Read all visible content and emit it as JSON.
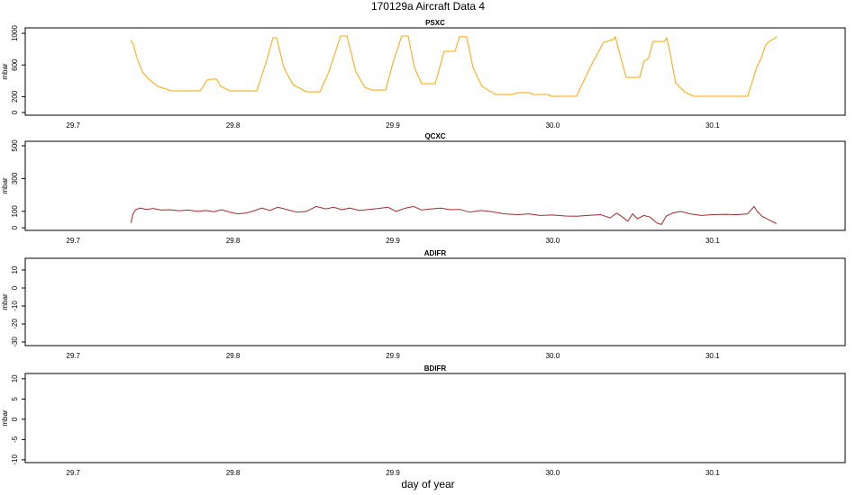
{
  "title": "170129a   Aircraft Data 4",
  "xlabel": "day of year",
  "chart_data": [
    {
      "type": "line",
      "title": "PSXC",
      "ylabel": "mbar",
      "color": "#ffa500",
      "xlim": [
        29.67,
        30.183
      ],
      "xticks": [
        29.7,
        29.8,
        29.9,
        {
          "value": 30,
          "label": "30.0"
        },
        30.1
      ],
      "ylim": [
        -34,
        1068
      ],
      "yticks": [
        0,
        200,
        600,
        1000
      ],
      "x": [
        29.7361,
        29.7377,
        29.74,
        29.7434,
        29.7473,
        29.753,
        29.7614,
        29.7794,
        29.7839,
        29.7856,
        29.7896,
        29.7924,
        29.798,
        29.8149,
        29.8206,
        29.8251,
        29.8273,
        29.8318,
        29.8375,
        29.8459,
        29.8544,
        29.86,
        29.8673,
        29.8713,
        29.8769,
        29.8825,
        29.8865,
        29.8955,
        29.9,
        29.9056,
        29.9096,
        29.9135,
        29.918,
        29.9265,
        29.9321,
        29.9389,
        29.9417,
        29.9462,
        29.9501,
        29.9558,
        29.9642,
        29.9744,
        29.9783,
        29.9856,
        29.9879,
        29.9969,
        29.9992,
        30.0149,
        30.0234,
        30.0318,
        30.0375,
        30.0392,
        30.042,
        30.0459,
        30.0544,
        30.0572,
        30.06,
        30.0628,
        30.0701,
        30.0713,
        30.073,
        30.0769,
        30.0825,
        30.0882,
        30.122,
        30.1276,
        30.1304,
        30.1332,
        30.1361,
        30.1389,
        30.14
      ],
      "values": [
        909,
        852,
        682,
        511,
        420,
        330,
        273,
        273,
        409,
        420,
        420,
        330,
        273,
        273,
        625,
        943,
        943,
        568,
        352,
        261,
        261,
        511,
        966,
        966,
        511,
        318,
        284,
        284,
        625,
        966,
        966,
        568,
        364,
        364,
        773,
        773,
        955,
        955,
        568,
        330,
        227,
        227,
        250,
        250,
        227,
        227,
        205,
        205,
        568,
        886,
        920,
        955,
        739,
        443,
        443,
        648,
        682,
        898,
        898,
        943,
        795,
        375,
        261,
        205,
        205,
        568,
        682,
        852,
        909,
        932,
        966
      ]
    },
    {
      "type": "line",
      "title": "QCXC",
      "ylabel": "mbar",
      "color": "#a52a2a",
      "xlim": [
        29.67,
        30.183
      ],
      "xticks": [
        29.7,
        29.8,
        29.9,
        {
          "value": 30,
          "label": "30.0"
        },
        30.1
      ],
      "ylim": [
        -16,
        527
      ],
      "yticks": [
        0,
        100,
        300,
        500
      ],
      "x": [
        29.7361,
        29.7375,
        29.739,
        29.742,
        29.746,
        29.75,
        29.755,
        29.76,
        29.766,
        29.772,
        29.778,
        29.783,
        29.788,
        29.793,
        29.798,
        29.803,
        29.808,
        29.812,
        29.818,
        29.823,
        29.828,
        29.834,
        29.84,
        29.846,
        29.852,
        29.858,
        29.863,
        29.868,
        29.873,
        29.879,
        29.885,
        29.891,
        29.897,
        29.902,
        29.908,
        29.913,
        29.918,
        29.924,
        29.93,
        29.936,
        29.942,
        29.948,
        29.955,
        29.962,
        29.97,
        29.978,
        29.985,
        29.992,
        30.0,
        30.008,
        30.015,
        30.022,
        30.03,
        30.036,
        30.04,
        30.043,
        30.047,
        30.05,
        30.053,
        30.057,
        30.061,
        30.065,
        30.068,
        30.071,
        30.075,
        30.08,
        30.086,
        30.093,
        30.1,
        30.108,
        30.115,
        30.122,
        30.126,
        30.128,
        30.131,
        30.134,
        30.137,
        30.14
      ],
      "values": [
        30,
        85,
        110,
        120,
        112,
        118,
        108,
        110,
        104,
        108,
        100,
        105,
        98,
        110,
        95,
        85,
        90,
        100,
        120,
        105,
        125,
        110,
        95,
        100,
        130,
        115,
        125,
        110,
        120,
        105,
        112,
        118,
        125,
        100,
        120,
        130,
        108,
        115,
        120,
        110,
        112,
        95,
        105,
        98,
        85,
        80,
        85,
        75,
        78,
        72,
        70,
        75,
        80,
        60,
        90,
        70,
        40,
        85,
        55,
        75,
        65,
        30,
        20,
        70,
        90,
        100,
        85,
        75,
        80,
        82,
        80,
        85,
        130,
        100,
        70,
        55,
        40,
        25
      ]
    },
    {
      "type": "line",
      "title": "ADIFR",
      "ylabel": "mbar",
      "xlim": [
        29.67,
        30.183
      ],
      "xticks": [
        29.7,
        29.8,
        29.9,
        {
          "value": 30,
          "label": "30.0"
        },
        30.1
      ],
      "ylim": [
        -32,
        16.5
      ],
      "yticks": [
        -30,
        -20,
        -10,
        0,
        10
      ]
    },
    {
      "type": "line",
      "title": "BDIFR",
      "ylabel": "mbar",
      "xlim": [
        29.67,
        30.183
      ],
      "xticks": [
        29.7,
        29.8,
        29.9,
        {
          "value": 30,
          "label": "30.0"
        },
        30.1
      ],
      "ylim": [
        -10.7,
        11.3
      ],
      "yticks": [
        -10,
        -5,
        0,
        5,
        10
      ]
    }
  ]
}
